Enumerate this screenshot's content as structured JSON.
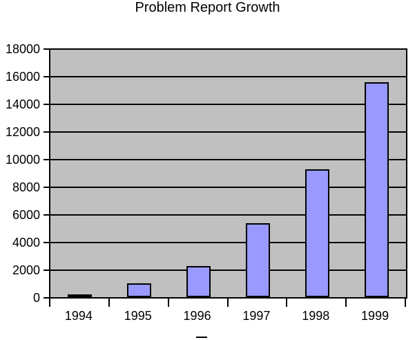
{
  "chart_data": {
    "type": "bar",
    "title": "Problem Report Growth",
    "categories": [
      "1994",
      "1995",
      "1996",
      "1997",
      "1998",
      "1999"
    ],
    "values": [
      100,
      1000,
      2250,
      5350,
      9250,
      15550
    ],
    "xlabel": "",
    "ylabel": "",
    "ylim": [
      0,
      18000
    ],
    "y_ticks": [
      0,
      2000,
      4000,
      6000,
      8000,
      10000,
      12000,
      14000,
      16000,
      18000
    ],
    "grid": true,
    "legend": false,
    "colors": {
      "bar_fill": "#9999FF",
      "bar_border": "#000000",
      "plot_background": "#C0C0C0",
      "gridline": "#000000",
      "axis": "#000000",
      "text": "#000000",
      "page_background": "#FFFFFF"
    }
  }
}
